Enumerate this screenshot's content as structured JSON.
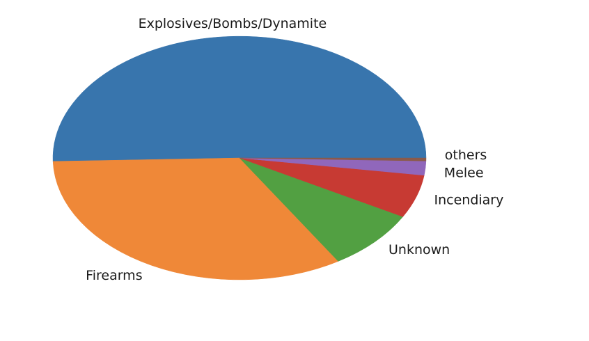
{
  "chart_data": {
    "type": "pie",
    "title": "",
    "categories": [
      "Explosives/Bombs/Dynamite",
      "Firearms",
      "Unknown",
      "Incendiary",
      "Melee",
      "others"
    ],
    "values": [
      51.0,
      33.8,
      8.2,
      5.8,
      1.9,
      0.4
    ],
    "unit": "percent",
    "colors": [
      "#3875ad",
      "#ef8838",
      "#52a042",
      "#c73a33",
      "#9067bb",
      "#8a5a4b"
    ],
    "start_angle_deg": 0,
    "direction": "counterclockwise",
    "legend": "none"
  }
}
